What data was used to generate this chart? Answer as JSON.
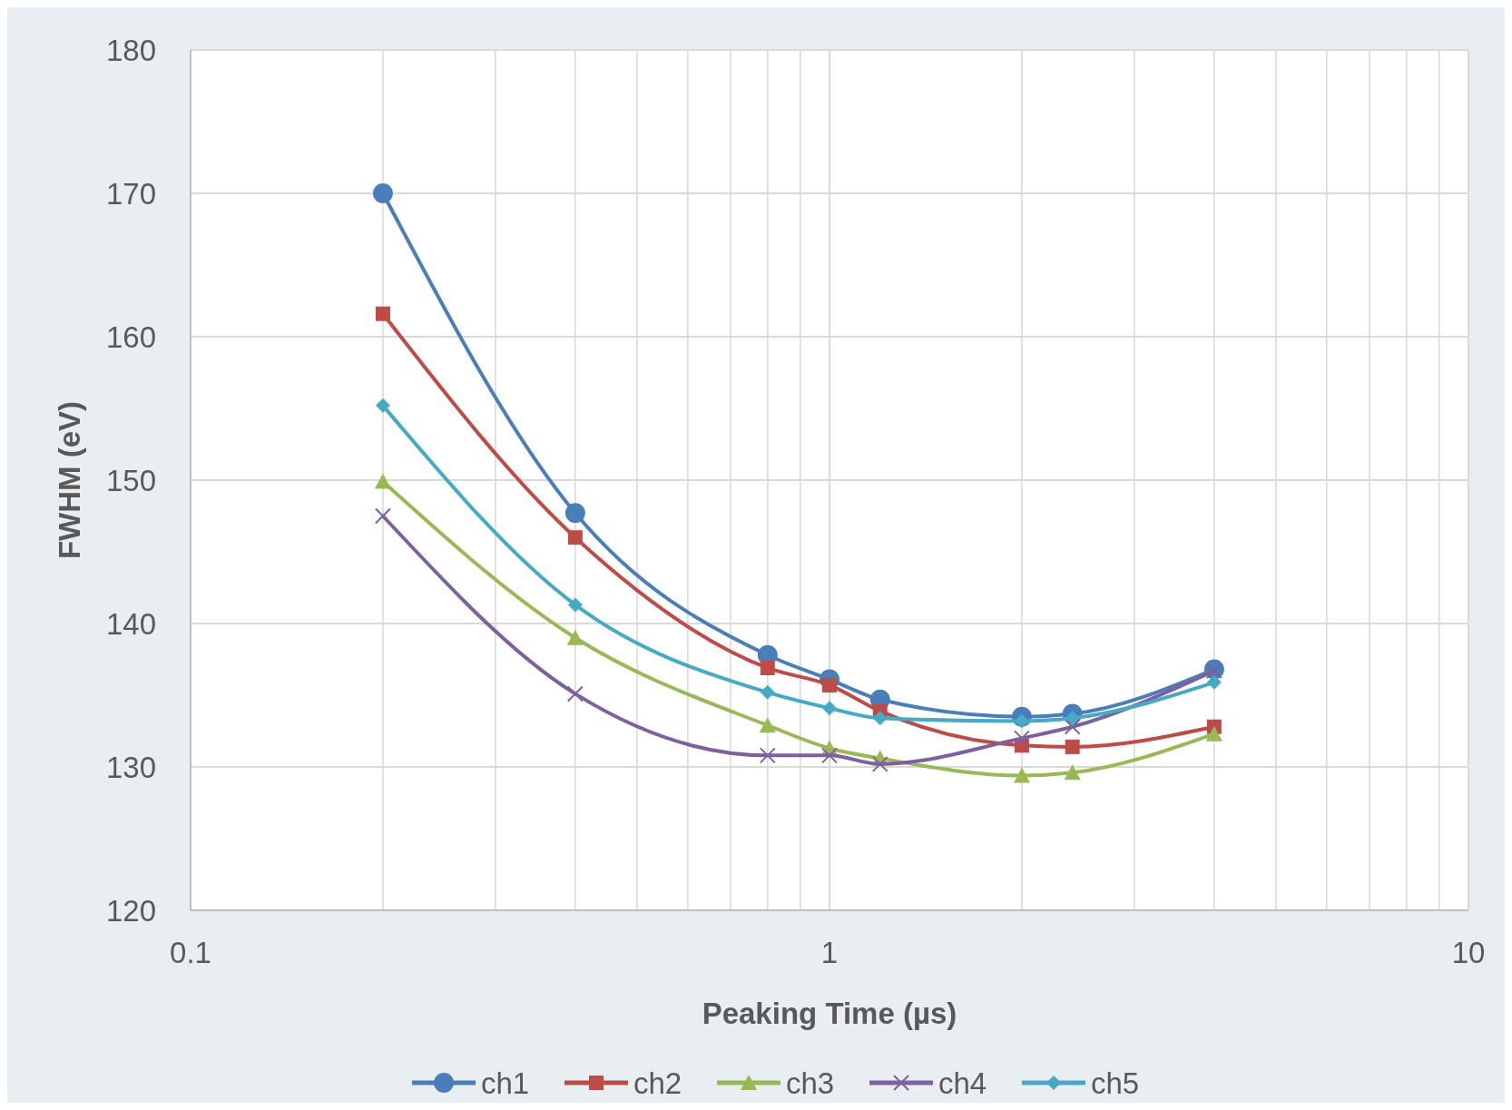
{
  "chart_data": {
    "type": "line",
    "xlabel": "Peaking Time (µs)",
    "ylabel": "FWHM (eV)",
    "log": "x",
    "xlim": [
      0.1,
      10
    ],
    "ylim": [
      120,
      180
    ],
    "xticks": [
      0.1,
      {
        "value": 0.2,
        "label": null
      },
      {
        "value": 0.3,
        "label": null
      },
      {
        "value": 0.4,
        "label": null
      },
      {
        "value": 0.5,
        "label": null
      },
      {
        "value": 0.6,
        "label": null
      },
      {
        "value": 0.7,
        "label": null
      },
      {
        "value": 0.8,
        "label": null
      },
      {
        "value": 0.9,
        "label": null
      },
      1,
      {
        "value": 2,
        "label": null
      },
      {
        "value": 3,
        "label": null
      },
      {
        "value": 4,
        "label": null
      },
      {
        "value": 5,
        "label": null
      },
      {
        "value": 6,
        "label": null
      },
      {
        "value": 7,
        "label": null
      },
      {
        "value": 8,
        "label": null
      },
      {
        "value": 9,
        "label": null
      },
      10
    ],
    "yticks": [
      120,
      130,
      140,
      150,
      160,
      170,
      180
    ],
    "grid": true,
    "legend": "bottom",
    "line_style": "solid",
    "x": [
      0.2,
      0.4,
      0.8,
      1,
      1.2,
      2,
      2.4,
      4
    ],
    "series": [
      {
        "name": "ch1",
        "color": "#4a7ebb",
        "marker": "circle",
        "values": [
          170,
          147.7,
          137.8,
          136.1,
          134.7,
          133.5,
          133.7,
          136.8
        ]
      },
      {
        "name": "ch2",
        "color": "#be4b48",
        "marker": "square",
        "values": [
          161.6,
          146,
          136.9,
          135.7,
          133.9,
          131.5,
          131.4,
          132.8
        ]
      },
      {
        "name": "ch3",
        "color": "#98b954",
        "marker": "triangle",
        "values": [
          149.9,
          139,
          132.9,
          131.3,
          130.6,
          129.4,
          129.6,
          132.3
        ]
      },
      {
        "name": "ch4",
        "color": "#7d60a0",
        "marker": "cross",
        "values": [
          147.5,
          135.1,
          130.8,
          130.8,
          130.2,
          132,
          132.8,
          136.7
        ]
      },
      {
        "name": "ch5",
        "color": "#46aac5",
        "marker": "diamond",
        "values": [
          155.2,
          141.3,
          135.2,
          134.1,
          133.4,
          133.2,
          133.4,
          135.9
        ]
      }
    ]
  }
}
